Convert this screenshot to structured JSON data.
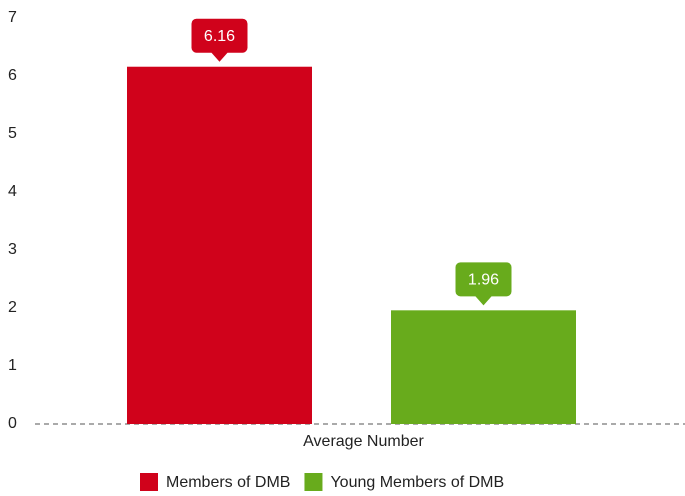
{
  "chart_data": {
    "type": "bar",
    "categories": [
      "Average Number"
    ],
    "series": [
      {
        "name": "Members of DMB",
        "color": "#d0021b",
        "values": [
          6.16
        ]
      },
      {
        "name": "Young Members of DMB",
        "color": "#68ab1c",
        "values": [
          1.96
        ]
      }
    ],
    "ylim": [
      0,
      7
    ],
    "yticks": [
      0,
      1,
      2,
      3,
      4,
      5,
      6,
      7
    ],
    "grid": false,
    "legend": "bottom"
  }
}
